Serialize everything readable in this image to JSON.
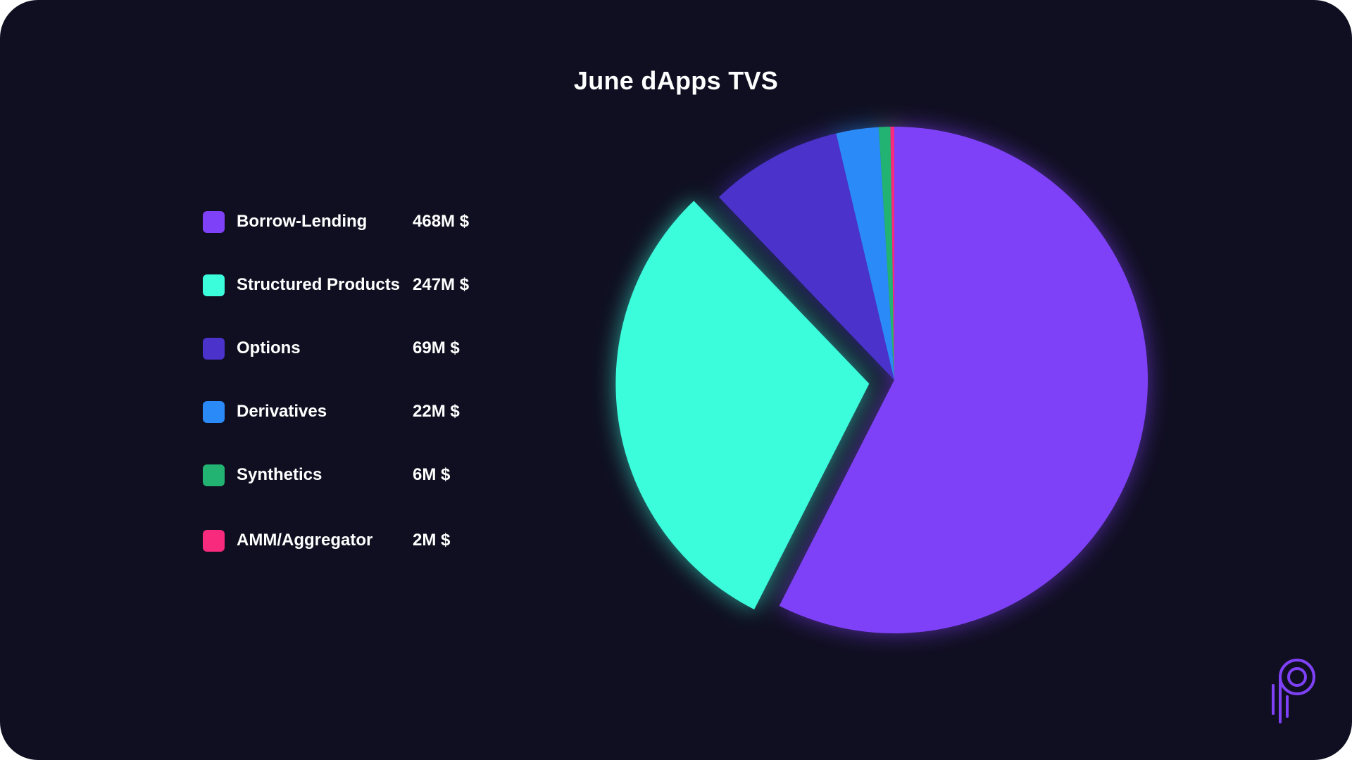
{
  "chart_data": {
    "type": "pie",
    "title": "June dApps TVS",
    "categories": [
      "Borrow-Lending",
      "Structured Products",
      "Options",
      "Derivatives",
      "Synthetics",
      "AMM/Aggregator"
    ],
    "values": [
      468,
      247,
      69,
      22,
      6,
      2
    ],
    "value_labels": [
      "468M $",
      "247M $",
      "69M $",
      "22M $",
      "6M $",
      "2M $"
    ],
    "colors": [
      "#7f41f7",
      "#3bfcdb",
      "#4a32cb",
      "#2a8af7",
      "#22b372",
      "#f72a7d"
    ],
    "exploded": [
      false,
      true,
      false,
      false,
      false,
      false
    ],
    "legend_position": "left",
    "unit": "M $"
  },
  "colors": {
    "background": "#100f21",
    "accent": "#7f41f7"
  },
  "logo": {
    "icon": "p-logo-icon"
  }
}
